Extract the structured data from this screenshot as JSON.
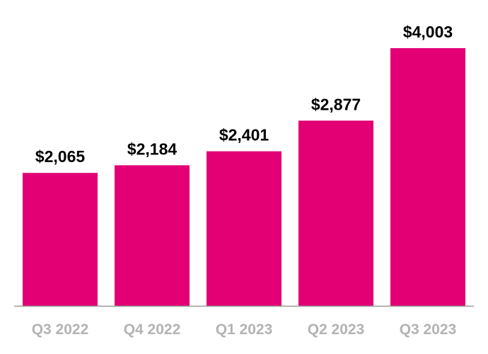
{
  "chart_data": {
    "type": "bar",
    "title": "",
    "xlabel": "",
    "ylabel": "",
    "categories": [
      "Q3 2022",
      "Q4 2022",
      "Q1 2023",
      "Q2 2023",
      "Q3 2023"
    ],
    "values": [
      2065,
      2184,
      2401,
      2877,
      4003
    ],
    "data_labels": [
      "$2,065",
      "$2,184",
      "$2,401",
      "$2,877",
      "$4,003"
    ],
    "ylim": [
      0,
      4003
    ],
    "grid": false,
    "legend": "none",
    "colors": {
      "bar": "#E20074",
      "axis": "#999999",
      "category_label": "#b3b3b3",
      "value_label": "#000000"
    }
  }
}
